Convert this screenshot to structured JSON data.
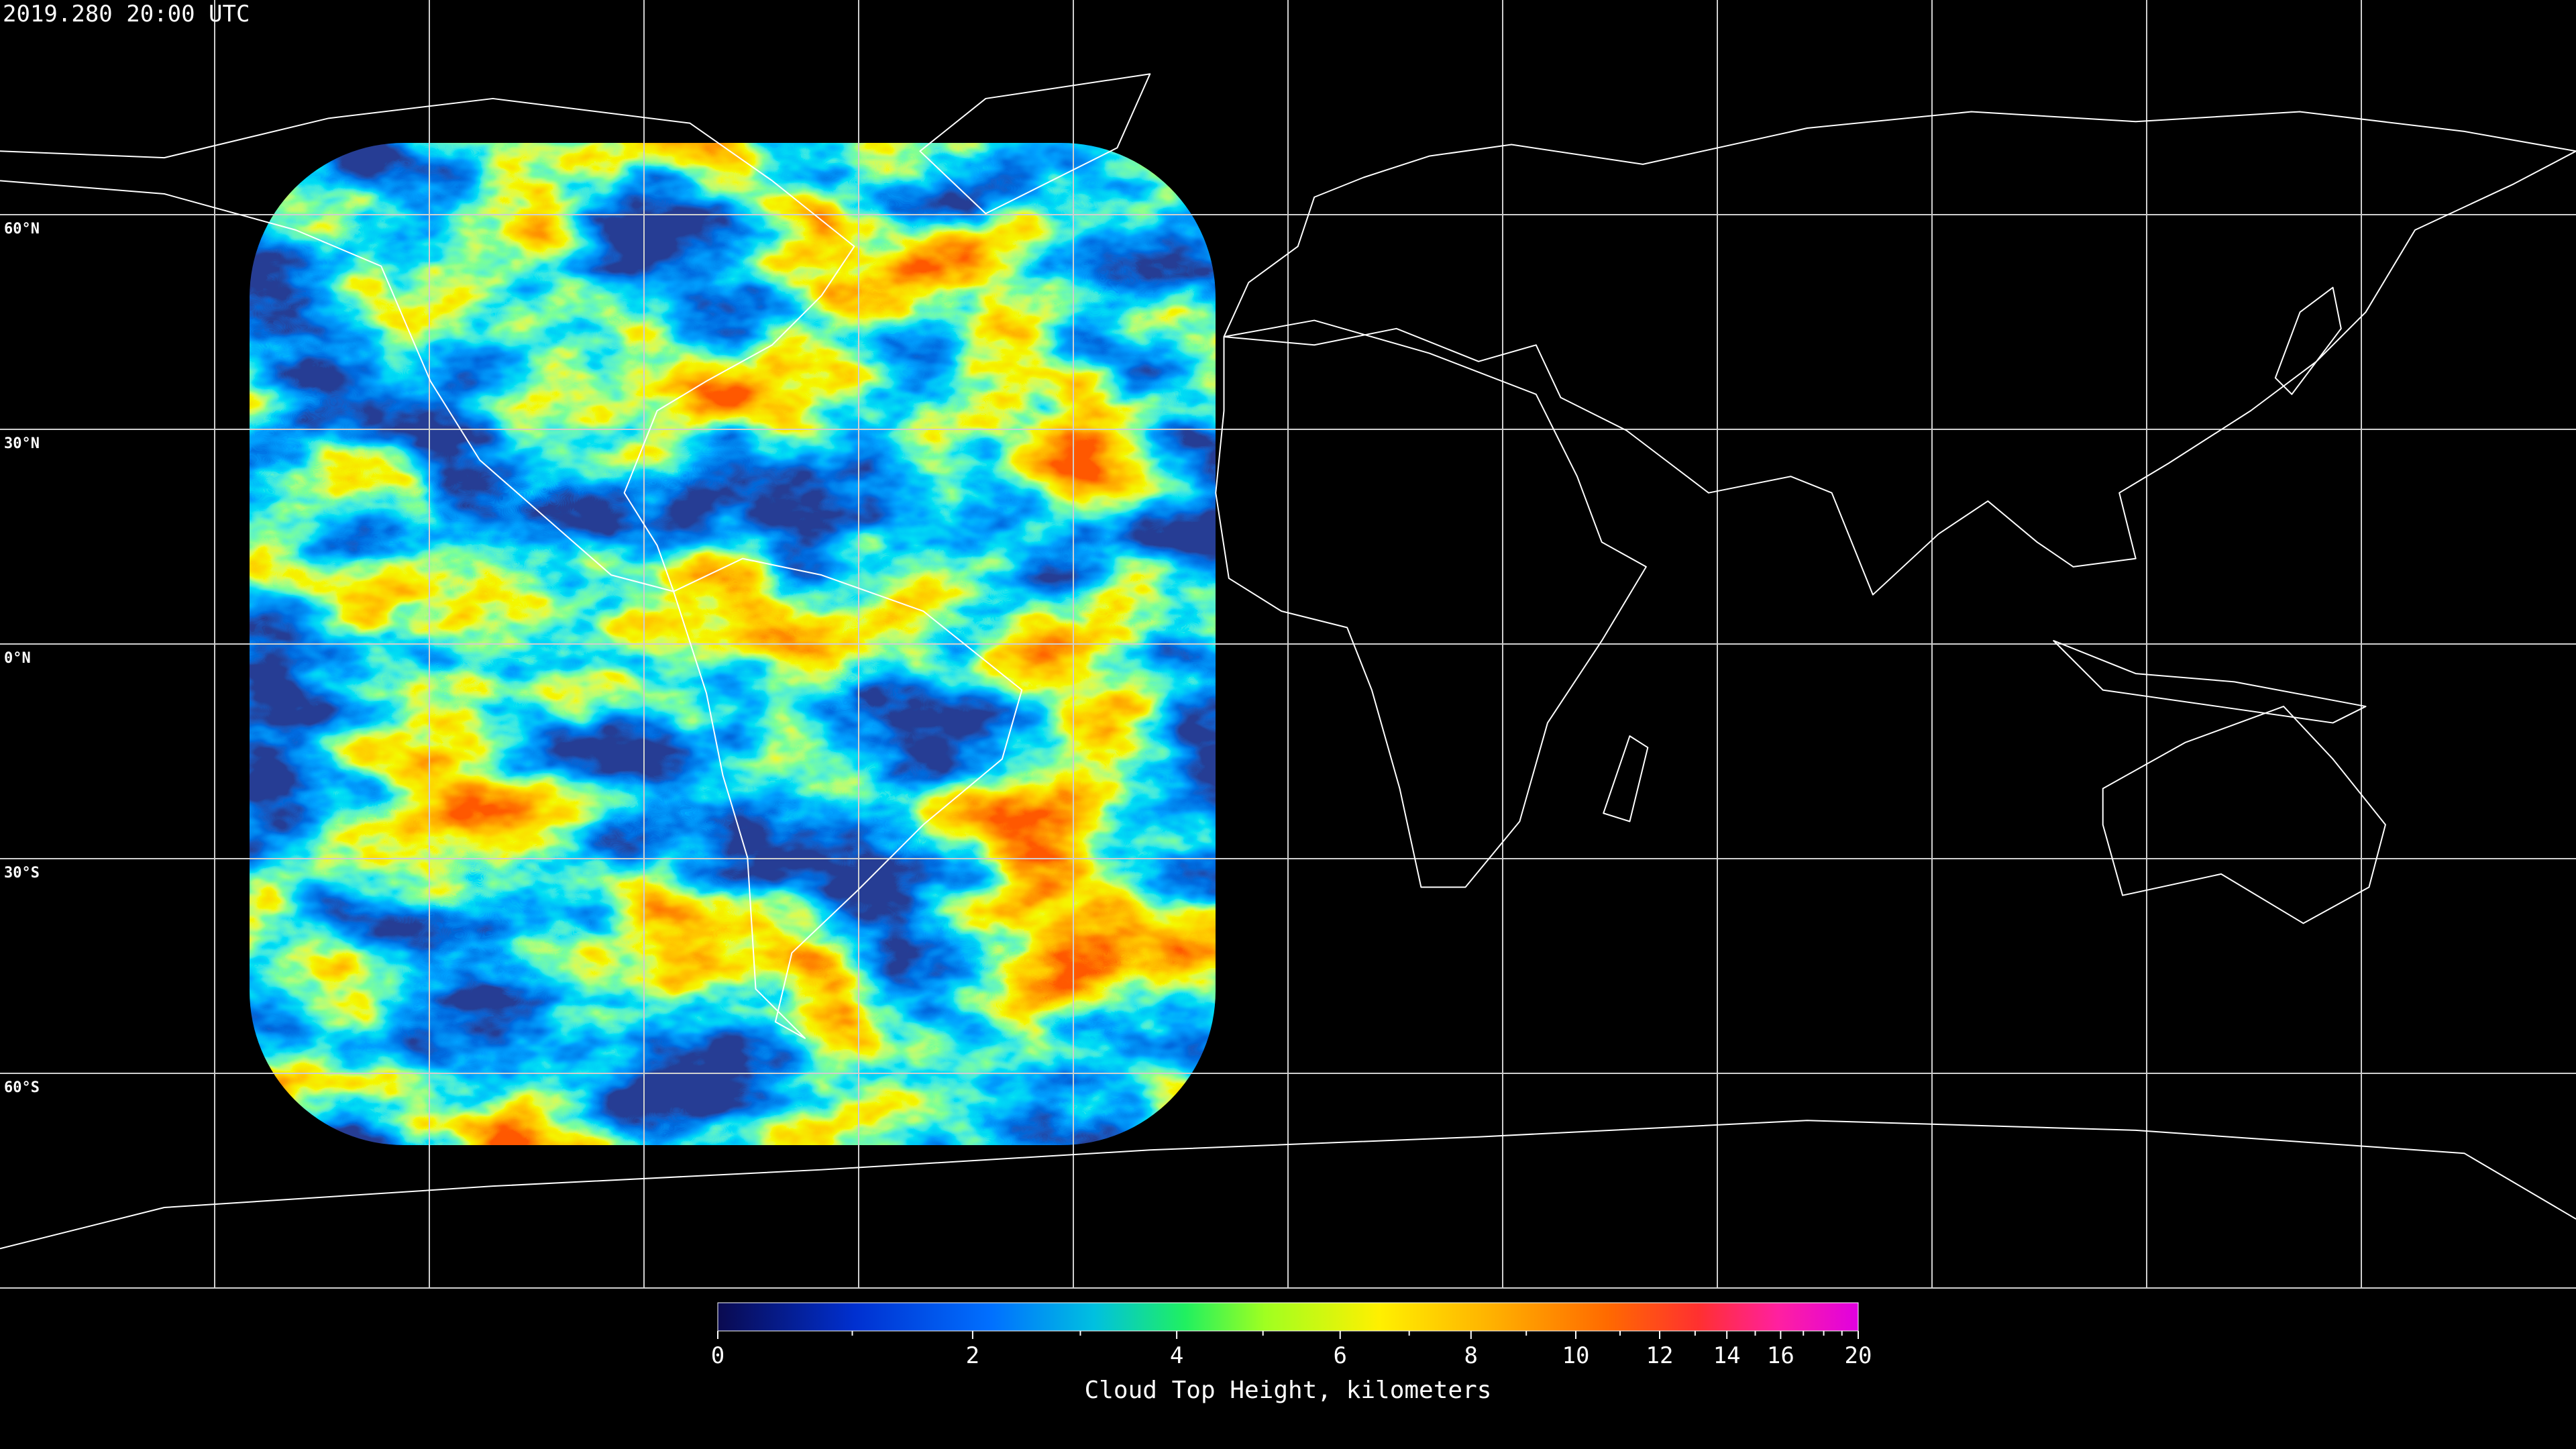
{
  "header": {
    "timestamp": "2019.280 20:00 UTC"
  },
  "map": {
    "lon_lines": [
      -150,
      -120,
      -90,
      -60,
      -30,
      0,
      30,
      60,
      90,
      120,
      150
    ],
    "lat_lines": [
      {
        "value": 60,
        "label": "60°N"
      },
      {
        "value": 30,
        "label": "30°N"
      },
      {
        "value": 0,
        "label": "0°N"
      },
      {
        "value": -30,
        "label": "30°S"
      },
      {
        "value": -60,
        "label": "60°S"
      }
    ]
  },
  "colorbar": {
    "label": "Cloud Top Height, kilometers",
    "range": [
      0,
      20
    ],
    "ticks": [
      0,
      2,
      4,
      6,
      8,
      10,
      12,
      14,
      16,
      20
    ],
    "minor_ticks": [
      1,
      3,
      5,
      7,
      9,
      11,
      13,
      15,
      17,
      18,
      19
    ]
  }
}
